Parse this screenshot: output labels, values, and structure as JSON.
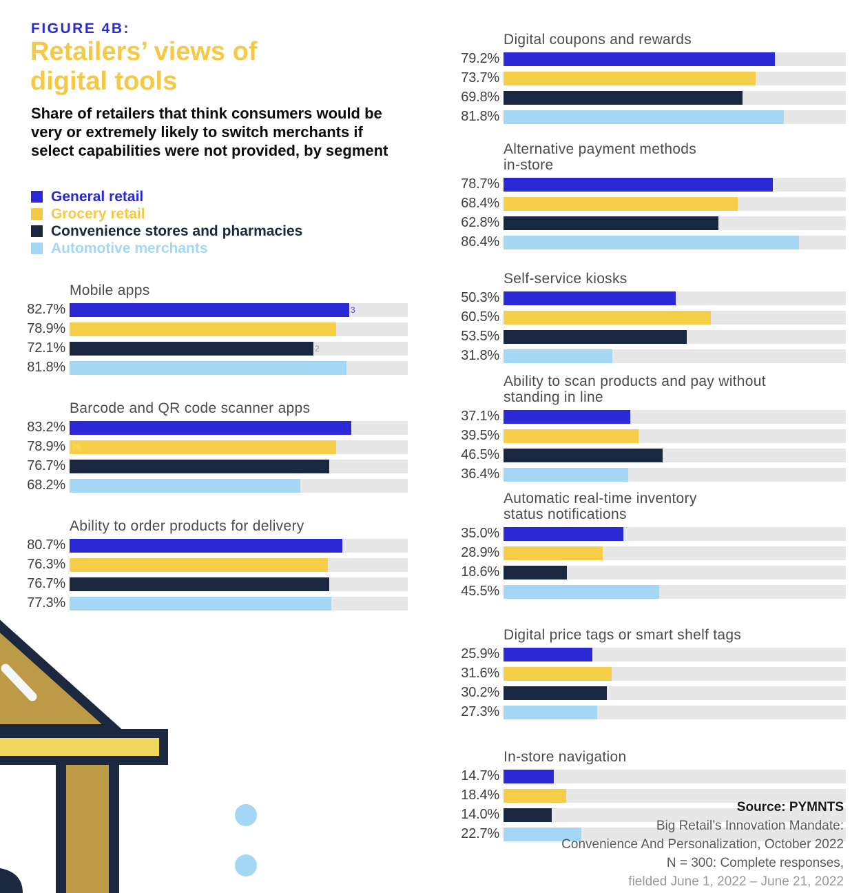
{
  "header": {
    "figure_label": "FIGURE 4B:",
    "title": "Retailers’ views of\ndigital tools",
    "subtitle": "Share of retailers that think consumers would be very or extremely likely to switch merchants if select capabilities were not provided, by segment"
  },
  "legend": [
    {
      "label": "General retail",
      "color": "#2b28d6"
    },
    {
      "label": "Grocery retail",
      "color": "#f5c945"
    },
    {
      "label": "Convenience stores and pharmacies",
      "color": "#1a2740"
    },
    {
      "label": "Automotive merchants",
      "color": "#a3d7f3"
    }
  ],
  "chart_data": {
    "type": "bar",
    "orientation": "horizontal",
    "unit": "percent",
    "axis_range": [
      0,
      100
    ],
    "grid": false,
    "legend_position": "top-left",
    "track_color": "#e7e7e7",
    "series": [
      {
        "name": "General retail",
        "color": "#2b28d6"
      },
      {
        "name": "Grocery retail",
        "color": "#f6ce48"
      },
      {
        "name": "Convenience stores and pharmacies",
        "color": "#1a2740"
      },
      {
        "name": "Automotive merchants",
        "color": "#a3d7f3"
      }
    ],
    "groups": [
      {
        "column": "left",
        "title": "Mobile apps",
        "values": [
          82.7,
          78.9,
          72.1,
          81.8
        ],
        "labels": [
          "82.7%",
          "78.9%",
          "72.1%",
          "81.8%"
        ],
        "artifacts": [
          {
            "row": 0,
            "text": "3",
            "pos": "end",
            "color": "#4a4ad8"
          },
          {
            "row": 2,
            "text": "2",
            "pos": "end",
            "color": "#9a9a9a"
          }
        ]
      },
      {
        "column": "left",
        "title": "Barcode and QR code scanner apps",
        "values": [
          83.2,
          78.9,
          76.7,
          68.2
        ],
        "labels": [
          "83.2%",
          "78.9%",
          "76.7%",
          "68.2%"
        ],
        "artifacts": [
          {
            "row": 1,
            "text": "79",
            "pos": "start",
            "color": "#f9dc6f"
          }
        ]
      },
      {
        "column": "left",
        "title": "Ability to order products for delivery",
        "values": [
          80.7,
          76.3,
          76.7,
          77.3
        ],
        "labels": [
          "80.7%",
          "76.3%",
          "76.7%",
          "77.3%"
        ]
      },
      {
        "column": "right",
        "title": "Digital coupons and rewards",
        "values": [
          79.2,
          73.7,
          69.8,
          81.8
        ],
        "labels": [
          "79.2%",
          "73.7%",
          "69.8%",
          "81.8%"
        ]
      },
      {
        "column": "right",
        "title": "Alternative payment methods\nin-store",
        "values": [
          78.7,
          68.4,
          62.8,
          86.4
        ],
        "labels": [
          "78.7%",
          "68.4%",
          "62.8%",
          "86.4%"
        ]
      },
      {
        "column": "right",
        "title": "Self-service kiosks",
        "values": [
          50.3,
          60.5,
          53.5,
          31.8
        ],
        "labels": [
          "50.3%",
          "60.5%",
          "53.5%",
          "31.8%"
        ]
      },
      {
        "column": "right",
        "title": "Ability to scan products and pay without\nstanding in line",
        "values": [
          37.1,
          39.5,
          46.5,
          36.4
        ],
        "labels": [
          "37.1%",
          "39.5%",
          "46.5%",
          "36.4%"
        ]
      },
      {
        "column": "right",
        "title": "Automatic real-time inventory\nstatus notifications",
        "values": [
          35.0,
          28.9,
          18.6,
          45.5
        ],
        "labels": [
          "35.0%",
          "28.9%",
          "18.6%",
          "45.5%"
        ]
      },
      {
        "column": "right",
        "title": "Digital price tags or smart shelf tags",
        "values": [
          25.9,
          31.6,
          30.2,
          27.3
        ],
        "labels": [
          "25.9%",
          "31.6%",
          "30.2%",
          "27.3%"
        ]
      },
      {
        "column": "right",
        "title": "In-store navigation",
        "values": [
          14.7,
          18.4,
          14.0,
          22.7
        ],
        "labels": [
          "14.7%",
          "18.4%",
          "14.0%",
          "22.7%"
        ]
      }
    ]
  },
  "source": {
    "label": "Source: PYMNTS",
    "lines": [
      "Big Retail’s Innovation Mandate:",
      "Convenience And Personalization, October 2022",
      "N = 300: Complete responses,"
    ],
    "fielded": "fielded June 1, 2022 – June 21, 2022"
  }
}
